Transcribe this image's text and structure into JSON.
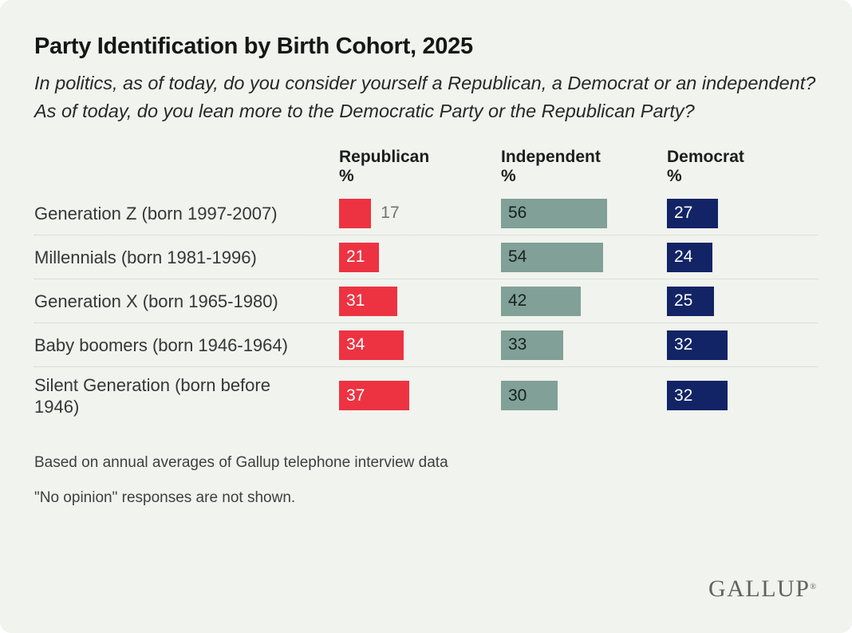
{
  "title": "Party Identification by Birth Cohort, 2025",
  "subtitle_lines": [
    "In politics, as of today, do you consider yourself a Republican, a Democrat or an independent?",
    "As of today, do you lean more to the Democratic Party or the Republican Party?"
  ],
  "chart_data": {
    "type": "bar",
    "orientation": "horizontal",
    "value_labels": true,
    "categories": [
      "Generation Z (born 1997-2007)",
      "Millennials (born 1981-1996)",
      "Generation X (born 1965-1980)",
      "Baby boomers (born 1946-1964)",
      "Silent Generation (born before 1946)"
    ],
    "series": [
      {
        "name": "Republican",
        "unit": "%",
        "color": "#ED3341",
        "label_color": "#ffffff",
        "values": [
          17,
          21,
          31,
          34,
          37
        ]
      },
      {
        "name": "Independent",
        "unit": "%",
        "color": "#81A098",
        "label_color": "#16211e",
        "values": [
          56,
          54,
          42,
          33,
          30
        ]
      },
      {
        "name": "Democrat",
        "unit": "%",
        "color": "#122466",
        "label_color": "#ffffff",
        "values": [
          27,
          24,
          25,
          32,
          32
        ]
      }
    ]
  },
  "footnotes": [
    "Based on annual averages of Gallup telephone interview data",
    "\"No opinion\" responses are not shown."
  ],
  "brand": {
    "logo_text": "GALLUP",
    "registered_mark": "®"
  },
  "colors": {
    "card_background": "#F0F3EE",
    "separator": "#c6ccc4",
    "outside_value_label": "#70756f"
  }
}
